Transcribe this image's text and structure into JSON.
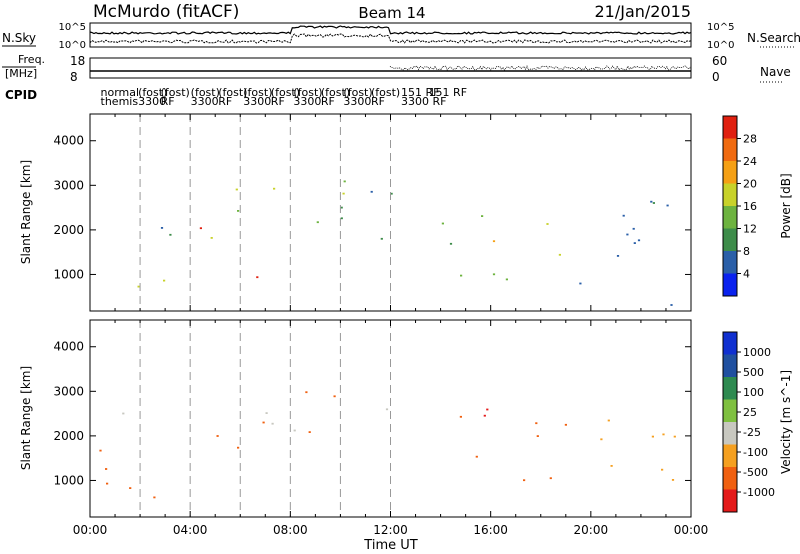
{
  "header": {
    "station": "McMurdo (fitACF)",
    "beam": "Beam 14",
    "date": "21/Jan/2015"
  },
  "params": {
    "nsky_label": "N.Sky",
    "nsearch_label": "N.Search",
    "freq_label_1": "Freq.",
    "freq_label_2": "[MHz]",
    "nave_label": "Nave",
    "cpid_label": "CPID",
    "noise_ticks": [
      "10^5",
      "10^0"
    ],
    "freq_ticks": [
      "18",
      "8"
    ],
    "nave_ticks": [
      "60",
      "0"
    ],
    "cpid_entries": [
      {
        "t": 0.5,
        "l1": "normal",
        "l2": "themis"
      },
      {
        "t": 2.0,
        "l1": "(fost)",
        "l2": "3300"
      },
      {
        "t": 2.9,
        "l1": "(fost)",
        "l2": "RF"
      },
      {
        "t": 4.1,
        "l1": "(fost)",
        "l2": "3300"
      },
      {
        "t": 5.2,
        "l1": "(fost)",
        "l2": "RF"
      },
      {
        "t": 6.2,
        "l1": "(fost)",
        "l2": "3300"
      },
      {
        "t": 7.3,
        "l1": "(fost)",
        "l2": "RF"
      },
      {
        "t": 8.2,
        "l1": "(fost)",
        "l2": "3300"
      },
      {
        "t": 9.3,
        "l1": "(fost)",
        "l2": "RF"
      },
      {
        "t": 10.2,
        "l1": "(fost)",
        "l2": "3300"
      },
      {
        "t": 11.3,
        "l1": "(fost)",
        "l2": "RF"
      },
      {
        "t": 12.5,
        "l1": "151 RF",
        "l2": "3300 RF"
      },
      {
        "t": 13.6,
        "l1": "151 RF",
        "l2": ""
      }
    ]
  },
  "chart_data": [
    {
      "type": "heatmap",
      "title": "Power",
      "xlabel": "Time UT",
      "ylabel": "Slant Range [km]",
      "xlim": [
        "00:00",
        "24:00"
      ],
      "ylim": [
        180,
        4600
      ],
      "x_tick_labels": [
        "00:00",
        "04:00",
        "08:00",
        "12:00",
        "16:00",
        "20:00",
        "00:00"
      ],
      "y_tick_labels": [
        "1000",
        "2000",
        "3000",
        "4000"
      ],
      "colorbar_label": "Power [dB]",
      "colorbar_ticks": [
        "4",
        "8",
        "12",
        "16",
        "20",
        "24",
        "28"
      ],
      "colorbar_range": [
        0,
        30
      ],
      "colors": [
        "#0a22ee",
        "#2a5fa8",
        "#3d8c4a",
        "#6db33f",
        "#c8d22a",
        "#f5a015",
        "#f06a10",
        "#e02010"
      ],
      "vertical_marker_hours": [
        2,
        4,
        6,
        8,
        10,
        12
      ],
      "features": [
        {
          "t0": 0.2,
          "t1": 1.3,
          "r0": 2150,
          "r1": 2500,
          "v": 6
        },
        {
          "t0": 0.3,
          "t1": 2.0,
          "r0": 700,
          "r1": 1250,
          "v": 24
        },
        {
          "t0": 1.5,
          "t1": 3.8,
          "r0": 1500,
          "r1": 2100,
          "v": 10
        },
        {
          "t0": 2.5,
          "t1": 4.2,
          "r0": 800,
          "r1": 1300,
          "v": 20
        },
        {
          "t0": 4.0,
          "t1": 6.5,
          "r0": 1700,
          "r1": 2400,
          "v": 22
        },
        {
          "t0": 6.3,
          "t1": 8.5,
          "r0": 650,
          "r1": 1250,
          "v": 26
        },
        {
          "t0": 5.5,
          "t1": 8.0,
          "r0": 2100,
          "r1": 3000,
          "v": 14
        },
        {
          "t0": 8.5,
          "t1": 10.5,
          "r0": 2000,
          "r1": 3300,
          "v": 14
        },
        {
          "t0": 10.0,
          "t1": 13.0,
          "r0": 1800,
          "r1": 3200,
          "v": 8
        },
        {
          "t0": 14.0,
          "t1": 16.0,
          "r0": 700,
          "r1": 2600,
          "v": 12
        },
        {
          "t0": 16.0,
          "t1": 19.0,
          "r0": 900,
          "r1": 2400,
          "v": 18
        },
        {
          "t0": 19.5,
          "t1": 23.8,
          "r0": 300,
          "r1": 2700,
          "v": 6
        }
      ]
    },
    {
      "type": "heatmap",
      "title": "Velocity",
      "xlabel": "Time UT",
      "ylabel": "Slant Range [km]",
      "xlim": [
        "00:00",
        "24:00"
      ],
      "ylim": [
        180,
        4600
      ],
      "x_tick_labels": [
        "00:00",
        "04:00",
        "08:00",
        "12:00",
        "16:00",
        "20:00",
        "00:00"
      ],
      "y_tick_labels": [
        "1000",
        "2000",
        "3000",
        "4000"
      ],
      "colorbar_label": "Velocity [m s^-1]",
      "colorbar_ticks": [
        "1000",
        "500",
        "100",
        "25",
        "-25",
        "-100",
        "-500",
        "-1000"
      ],
      "colorbar_range": [
        -1200,
        1200
      ],
      "colors": [
        "#e41a1a",
        "#f06010",
        "#f5a020",
        "#c8c8c0",
        "#7fc040",
        "#2e8a50",
        "#2050a0",
        "#1030d0"
      ],
      "vertical_marker_hours": [
        2,
        4,
        6,
        8,
        10,
        12
      ],
      "features": [
        {
          "t0": 0.2,
          "t1": 1.5,
          "r0": 2000,
          "r1": 2600,
          "v": 0
        },
        {
          "t0": 0.3,
          "t1": 4.0,
          "r0": 600,
          "r1": 1800,
          "v": -200
        },
        {
          "t0": 4.0,
          "t1": 7.0,
          "r0": 1500,
          "r1": 2500,
          "v": -250
        },
        {
          "t0": 5.5,
          "t1": 8.5,
          "r0": 2100,
          "r1": 2900,
          "v": 0
        },
        {
          "t0": 8.5,
          "t1": 10.5,
          "r0": 1900,
          "r1": 3100,
          "v": -150
        },
        {
          "t0": 10.5,
          "t1": 12.5,
          "r0": 2200,
          "r1": 2700,
          "v": 0
        },
        {
          "t0": 14.5,
          "t1": 16.5,
          "r0": 900,
          "r1": 2700,
          "v": -500
        },
        {
          "t0": 16.5,
          "t1": 19.5,
          "r0": 900,
          "r1": 2400,
          "v": -300
        },
        {
          "t0": 20.0,
          "t1": 23.8,
          "r0": 600,
          "r1": 2600,
          "v": -60
        }
      ]
    }
  ]
}
